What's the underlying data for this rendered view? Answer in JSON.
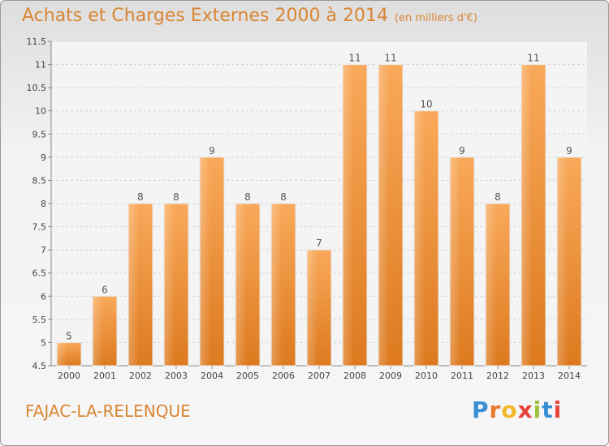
{
  "title": "Achats et Charges Externes 2000 à 2014",
  "unit_label": "(en milliers d'€)",
  "place_label": "FAJAC-LA-RELENQUE",
  "logo": {
    "text": "Proxiti",
    "letter_colors": [
      "#3a8fd4",
      "#e8792b",
      "#f2b92a",
      "#e8423b",
      "#9ac23c",
      "#3a8fd4",
      "#e8423b"
    ]
  },
  "colors": {
    "accent": "#d98533",
    "bar_light": "#f9a95a",
    "bar_dark": "#dd7a1f"
  },
  "chart_data": {
    "type": "bar",
    "categories": [
      "2000",
      "2001",
      "2002",
      "2003",
      "2004",
      "2005",
      "2006",
      "2007",
      "2008",
      "2009",
      "2010",
      "2011",
      "2012",
      "2013",
      "2014"
    ],
    "values": [
      5,
      6,
      8,
      8,
      9,
      8,
      8,
      7,
      11,
      11,
      10,
      9,
      8,
      11,
      9
    ],
    "data_labels": [
      "5",
      "6",
      "8",
      "8",
      "9",
      "8",
      "8",
      "7",
      "11",
      "11",
      "10",
      "9",
      "8",
      "11",
      "9"
    ],
    "ylim": [
      4.5,
      11.5
    ],
    "yticks": [
      4.5,
      5,
      5.5,
      6,
      6.5,
      7,
      7.5,
      8,
      8.5,
      9,
      9.5,
      10,
      10.5,
      11,
      11.5
    ],
    "ytick_labels": [
      "4.5",
      "5",
      "5.5",
      "6",
      "6.5",
      "7",
      "7.5",
      "8",
      "8.5",
      "9",
      "9.5",
      "10",
      "10.5",
      "11",
      "11.5"
    ],
    "grid": true,
    "xlabel": "",
    "ylabel": ""
  }
}
